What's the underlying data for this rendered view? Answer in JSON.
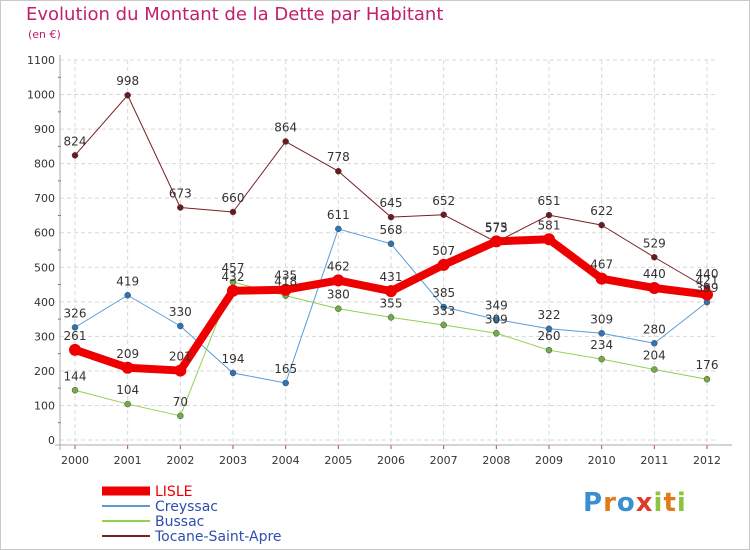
{
  "title": "Evolution du Montant de la Dette par Habitant",
  "subtitle": "(en €)",
  "logo": {
    "text": "Proxiti",
    "letters": [
      "P",
      "r",
      "o",
      "x",
      "i",
      "t",
      "i"
    ],
    "colors": [
      "#3a8fd0",
      "#e07a1a",
      "#3a8fd0",
      "#e03a2a",
      "#8cc63f",
      "#e07a1a",
      "#8cc63f"
    ]
  },
  "chart_data": {
    "type": "line",
    "x": [
      "2000",
      "2001",
      "2002",
      "2003",
      "2004",
      "2005",
      "2006",
      "2007",
      "2008",
      "2009",
      "2010",
      "2011",
      "2012"
    ],
    "ylim": [
      0,
      1100
    ],
    "yticks": [
      "0",
      "100",
      "200",
      "300",
      "400",
      "500",
      "600",
      "700",
      "800",
      "900",
      "1000",
      "1100"
    ],
    "grid": true,
    "legend_position": "bottom-left",
    "series": [
      {
        "name": "Tocane-Saint-Apre",
        "color": "#7a1f24",
        "marker": "#6b1a1f",
        "width": 1,
        "values": [
          824,
          998,
          673,
          660,
          864,
          778,
          645,
          652,
          573,
          651,
          622,
          529,
          440
        ],
        "labels": [
          "824",
          "998",
          "673",
          "660",
          "864",
          "778",
          "645",
          "652",
          "573",
          "651",
          "622",
          "529",
          "440"
        ]
      },
      {
        "name": "Creyssac",
        "color": "#5b9bd5",
        "marker": "#2e75b6",
        "width": 1,
        "values": [
          326,
          419,
          330,
          194,
          165,
          611,
          568,
          385,
          349,
          322,
          309,
          280,
          399
        ],
        "labels": [
          "326",
          "419",
          "330",
          "194",
          "165",
          "611",
          "568",
          "385",
          "349",
          "322",
          "309",
          "280",
          "399"
        ]
      },
      {
        "name": "Bussac",
        "color": "#92d050",
        "marker": "#70ad47",
        "width": 1,
        "values": [
          144,
          104,
          70,
          457,
          418,
          380,
          355,
          333,
          309,
          260,
          234,
          204,
          176
        ],
        "labels": [
          "144",
          "104",
          "70",
          "457",
          "418",
          "380",
          "355",
          "333",
          "309",
          "260",
          "234",
          "204",
          "176"
        ]
      },
      {
        "name": "LISLE",
        "color": "#ee0000",
        "marker": "#ee0000",
        "width": 8,
        "values": [
          261,
          209,
          201,
          432,
          435,
          462,
          431,
          507,
          575,
          581,
          467,
          440,
          421
        ],
        "labels": [
          "261",
          "209",
          "201",
          "432",
          "435",
          "462",
          "431",
          "507",
          "575",
          "581",
          "467",
          "440",
          "421"
        ]
      }
    ],
    "legend_order": [
      "LISLE",
      "Creyssac",
      "Bussac",
      "Tocane-Saint-Apre"
    ]
  }
}
